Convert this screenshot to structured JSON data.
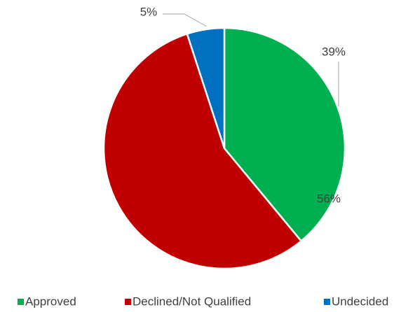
{
  "chart_data": {
    "type": "pie",
    "categories": [
      "Approved",
      "Declined/Not Qualified",
      "Undecided"
    ],
    "values": [
      39,
      56,
      5
    ],
    "value_labels": [
      "39%",
      "56%",
      "5%"
    ],
    "colors": [
      "#00b050",
      "#c00000",
      "#0070c0"
    ],
    "legend": "bottom"
  }
}
